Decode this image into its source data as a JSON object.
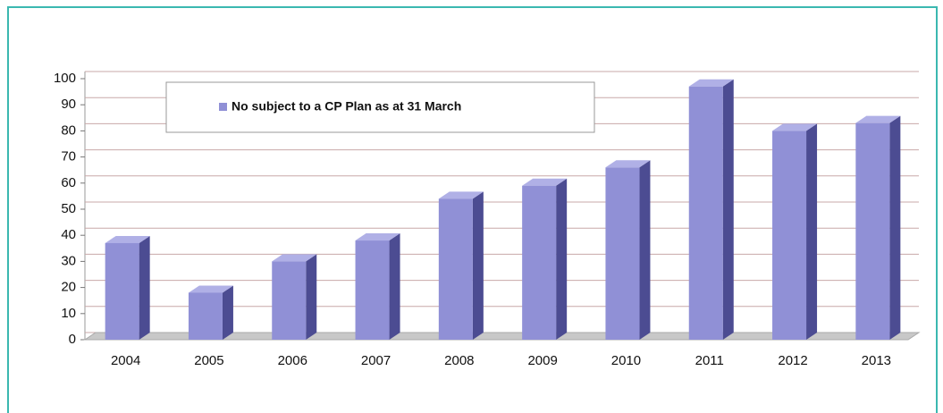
{
  "chart_data": {
    "type": "bar3d",
    "categories": [
      "2004",
      "2005",
      "2006",
      "2007",
      "2008",
      "2009",
      "2010",
      "2011",
      "2012",
      "2013"
    ],
    "series": [
      {
        "name": "No subject to a CP Plan as at 31 March",
        "color": "#9090d6",
        "values": [
          37,
          18,
          30,
          38,
          54,
          59,
          66,
          97,
          80,
          83
        ]
      }
    ],
    "ylim": [
      0,
      100
    ],
    "yticks": [
      0,
      10,
      20,
      30,
      40,
      50,
      60,
      70,
      80,
      90,
      100
    ],
    "grid": true,
    "legend": "top-left"
  }
}
